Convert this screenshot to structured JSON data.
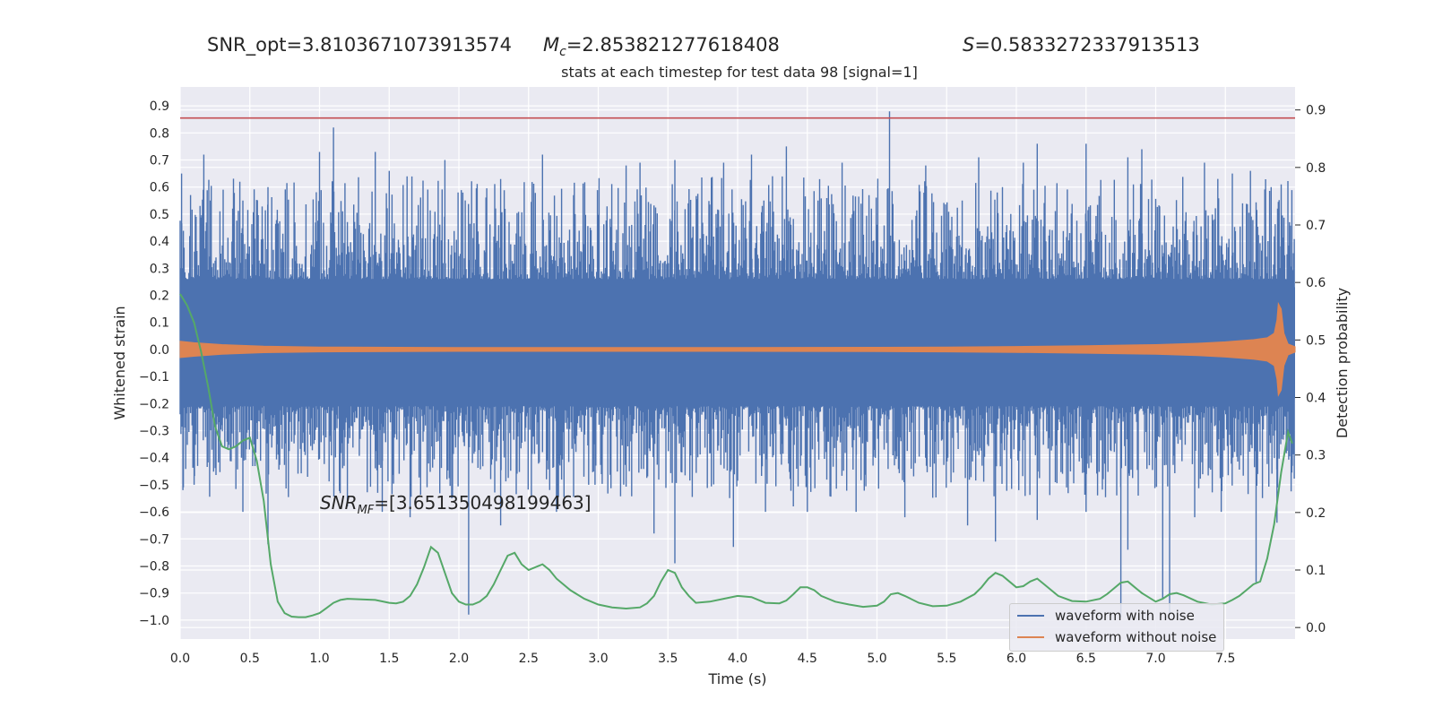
{
  "header": {
    "snr_opt": "SNR_opt=3.8103671073913574",
    "mc_symbol": "M",
    "mc_sub": "c",
    "mc_value": "=2.853821277618408",
    "s_symbol": "S",
    "s_value": "=0.5833272337913513",
    "title": "stats at each timestep for test data 98 [signal=1]"
  },
  "annotation": {
    "snr_mf_symbol": "SNR",
    "snr_mf_sub": "MF",
    "snr_mf_value": "=[3.651350498199463]"
  },
  "legend": {
    "items": [
      {
        "label": "waveform with noise",
        "color": "#4c72b0"
      },
      {
        "label": "waveform without noise",
        "color": "#dd8452"
      }
    ]
  },
  "chart_data": {
    "type": "line",
    "xlabel": "Time (s)",
    "ylabel": "Whitened strain",
    "y2label": "Detection probability",
    "xlim": [
      0.0,
      8.0
    ],
    "ylim": [
      -1.07,
      0.97
    ],
    "y2lim": [
      -0.02,
      0.94
    ],
    "xticks": [
      "0.0",
      "0.5",
      "1.0",
      "1.5",
      "2.0",
      "2.5",
      "3.0",
      "3.5",
      "4.0",
      "4.5",
      "5.0",
      "5.5",
      "6.0",
      "6.5",
      "7.0",
      "7.5"
    ],
    "yticks": [
      "0.9",
      "0.8",
      "0.7",
      "0.6",
      "0.5",
      "0.4",
      "0.3",
      "0.2",
      "0.1",
      "0.0",
      "-0.1",
      "-0.2",
      "-0.3",
      "-0.4",
      "-0.5",
      "-0.6",
      "-0.7",
      "-0.8",
      "-0.9",
      "-1.0"
    ],
    "y2ticks": [
      "0.9",
      "0.8",
      "0.7",
      "0.6",
      "0.5",
      "0.4",
      "0.3",
      "0.2",
      "0.1",
      "0.0"
    ],
    "grid": true,
    "legend_position": "lower-right",
    "series": [
      {
        "name": "waveform with noise",
        "color": "#4c72b0",
        "dense_band": {
          "upper": 0.23,
          "lower": -0.18
        },
        "peaks": [
          [
            0.01,
            0.65
          ],
          [
            0.17,
            0.72
          ],
          [
            0.45,
            0.55
          ],
          [
            0.63,
            0.6
          ],
          [
            1.0,
            0.73
          ],
          [
            1.1,
            0.82
          ],
          [
            1.4,
            0.73
          ],
          [
            1.5,
            0.66
          ],
          [
            1.9,
            0.7
          ],
          [
            2.3,
            0.63
          ],
          [
            2.6,
            0.72
          ],
          [
            3.2,
            0.68
          ],
          [
            3.3,
            0.69
          ],
          [
            3.55,
            0.7
          ],
          [
            3.9,
            0.69
          ],
          [
            4.1,
            0.72
          ],
          [
            4.25,
            0.64
          ],
          [
            4.35,
            0.75
          ],
          [
            4.75,
            0.69
          ],
          [
            5.09,
            0.88
          ],
          [
            5.35,
            0.68
          ],
          [
            5.73,
            0.71
          ],
          [
            5.9,
            0.6
          ],
          [
            6.05,
            0.69
          ],
          [
            6.15,
            0.76
          ],
          [
            6.5,
            0.76
          ],
          [
            6.8,
            0.71
          ],
          [
            6.9,
            0.74
          ],
          [
            7.35,
            0.69
          ],
          [
            7.55,
            0.65
          ],
          [
            7.68,
            0.66
          ],
          [
            7.9,
            0.61
          ]
        ],
        "troughs": [
          [
            0.02,
            -0.52
          ],
          [
            0.1,
            -0.5
          ],
          [
            0.45,
            -0.6
          ],
          [
            0.63,
            -0.72
          ],
          [
            1.2,
            -0.58
          ],
          [
            1.45,
            -0.6
          ],
          [
            1.65,
            -0.62
          ],
          [
            2.07,
            -0.98
          ],
          [
            2.3,
            -0.65
          ],
          [
            2.7,
            -0.6
          ],
          [
            3.4,
            -0.68
          ],
          [
            3.55,
            -0.79
          ],
          [
            3.97,
            -0.73
          ],
          [
            4.2,
            -0.6
          ],
          [
            4.4,
            -0.58
          ],
          [
            4.5,
            -0.6
          ],
          [
            4.85,
            -0.6
          ],
          [
            5.2,
            -0.62
          ],
          [
            5.65,
            -0.65
          ],
          [
            5.85,
            -0.71
          ],
          [
            6.15,
            -0.63
          ],
          [
            6.5,
            -0.6
          ],
          [
            6.75,
            -0.99
          ],
          [
            6.8,
            -0.74
          ],
          [
            7.05,
            -0.92
          ],
          [
            7.1,
            -0.98
          ],
          [
            7.28,
            -0.62
          ],
          [
            7.47,
            -0.6
          ],
          [
            7.72,
            -0.86
          ],
          [
            7.87,
            -0.64
          ],
          [
            7.98,
            -0.43
          ]
        ]
      },
      {
        "name": "waveform without noise",
        "color": "#dd8452",
        "envelope": [
          [
            0.0,
            0.03
          ],
          [
            0.1,
            0.025
          ],
          [
            0.3,
            0.018
          ],
          [
            0.6,
            0.012
          ],
          [
            1.0,
            0.009
          ],
          [
            2.0,
            0.007
          ],
          [
            3.0,
            0.007
          ],
          [
            4.0,
            0.007
          ],
          [
            5.0,
            0.008
          ],
          [
            5.5,
            0.009
          ],
          [
            6.0,
            0.011
          ],
          [
            6.5,
            0.014
          ],
          [
            7.0,
            0.018
          ],
          [
            7.3,
            0.023
          ],
          [
            7.5,
            0.028
          ],
          [
            7.7,
            0.036
          ],
          [
            7.8,
            0.043
          ],
          [
            7.85,
            0.06
          ],
          [
            7.87,
            0.11
          ],
          [
            7.88,
            0.17
          ],
          [
            7.9,
            0.15
          ],
          [
            7.92,
            0.06
          ],
          [
            7.95,
            0.02
          ],
          [
            8.0,
            0.01
          ]
        ]
      },
      {
        "name": "",
        "color": "#55a868",
        "axis": "right",
        "points": [
          [
            0.0,
            0.58
          ],
          [
            0.05,
            0.56
          ],
          [
            0.1,
            0.53
          ],
          [
            0.15,
            0.48
          ],
          [
            0.2,
            0.42
          ],
          [
            0.25,
            0.35
          ],
          [
            0.3,
            0.315
          ],
          [
            0.35,
            0.31
          ],
          [
            0.4,
            0.315
          ],
          [
            0.45,
            0.325
          ],
          [
            0.5,
            0.33
          ],
          [
            0.55,
            0.29
          ],
          [
            0.6,
            0.22
          ],
          [
            0.65,
            0.11
          ],
          [
            0.7,
            0.045
          ],
          [
            0.75,
            0.025
          ],
          [
            0.8,
            0.019
          ],
          [
            0.85,
            0.018
          ],
          [
            0.9,
            0.018
          ],
          [
            0.95,
            0.021
          ],
          [
            1.0,
            0.025
          ],
          [
            1.05,
            0.034
          ],
          [
            1.1,
            0.043
          ],
          [
            1.15,
            0.048
          ],
          [
            1.2,
            0.05
          ],
          [
            1.4,
            0.048
          ],
          [
            1.5,
            0.043
          ],
          [
            1.55,
            0.042
          ],
          [
            1.6,
            0.045
          ],
          [
            1.65,
            0.055
          ],
          [
            1.7,
            0.075
          ],
          [
            1.75,
            0.105
          ],
          [
            1.8,
            0.14
          ],
          [
            1.85,
            0.13
          ],
          [
            1.9,
            0.095
          ],
          [
            1.95,
            0.06
          ],
          [
            2.0,
            0.045
          ],
          [
            2.05,
            0.04
          ],
          [
            2.1,
            0.04
          ],
          [
            2.15,
            0.045
          ],
          [
            2.2,
            0.055
          ],
          [
            2.25,
            0.075
          ],
          [
            2.3,
            0.1
          ],
          [
            2.35,
            0.125
          ],
          [
            2.4,
            0.13
          ],
          [
            2.45,
            0.11
          ],
          [
            2.5,
            0.1
          ],
          [
            2.55,
            0.105
          ],
          [
            2.6,
            0.11
          ],
          [
            2.65,
            0.1
          ],
          [
            2.7,
            0.085
          ],
          [
            2.8,
            0.065
          ],
          [
            2.9,
            0.05
          ],
          [
            3.0,
            0.04
          ],
          [
            3.1,
            0.035
          ],
          [
            3.2,
            0.033
          ],
          [
            3.3,
            0.035
          ],
          [
            3.35,
            0.042
          ],
          [
            3.4,
            0.055
          ],
          [
            3.45,
            0.08
          ],
          [
            3.5,
            0.1
          ],
          [
            3.55,
            0.095
          ],
          [
            3.6,
            0.07
          ],
          [
            3.65,
            0.055
          ],
          [
            3.7,
            0.043
          ],
          [
            3.8,
            0.045
          ],
          [
            3.9,
            0.05
          ],
          [
            4.0,
            0.055
          ],
          [
            4.1,
            0.053
          ],
          [
            4.15,
            0.048
          ],
          [
            4.2,
            0.043
          ],
          [
            4.3,
            0.042
          ],
          [
            4.35,
            0.047
          ],
          [
            4.4,
            0.058
          ],
          [
            4.45,
            0.07
          ],
          [
            4.5,
            0.07
          ],
          [
            4.55,
            0.065
          ],
          [
            4.6,
            0.055
          ],
          [
            4.7,
            0.045
          ],
          [
            4.8,
            0.04
          ],
          [
            4.9,
            0.036
          ],
          [
            5.0,
            0.038
          ],
          [
            5.05,
            0.045
          ],
          [
            5.1,
            0.058
          ],
          [
            5.15,
            0.06
          ],
          [
            5.2,
            0.055
          ],
          [
            5.3,
            0.043
          ],
          [
            5.4,
            0.037
          ],
          [
            5.5,
            0.038
          ],
          [
            5.6,
            0.045
          ],
          [
            5.7,
            0.058
          ],
          [
            5.75,
            0.07
          ],
          [
            5.8,
            0.085
          ],
          [
            5.85,
            0.095
          ],
          [
            5.9,
            0.09
          ],
          [
            5.95,
            0.08
          ],
          [
            6.0,
            0.07
          ],
          [
            6.05,
            0.072
          ],
          [
            6.1,
            0.08
          ],
          [
            6.15,
            0.085
          ],
          [
            6.2,
            0.075
          ],
          [
            6.3,
            0.055
          ],
          [
            6.4,
            0.046
          ],
          [
            6.5,
            0.045
          ],
          [
            6.6,
            0.05
          ],
          [
            6.65,
            0.058
          ],
          [
            6.7,
            0.068
          ],
          [
            6.75,
            0.078
          ],
          [
            6.8,
            0.08
          ],
          [
            6.85,
            0.07
          ],
          [
            6.9,
            0.06
          ],
          [
            7.0,
            0.045
          ],
          [
            7.05,
            0.05
          ],
          [
            7.1,
            0.058
          ],
          [
            7.15,
            0.06
          ],
          [
            7.2,
            0.056
          ],
          [
            7.3,
            0.045
          ],
          [
            7.4,
            0.04
          ],
          [
            7.5,
            0.042
          ],
          [
            7.55,
            0.048
          ],
          [
            7.6,
            0.055
          ],
          [
            7.65,
            0.065
          ],
          [
            7.7,
            0.075
          ],
          [
            7.75,
            0.08
          ],
          [
            7.8,
            0.12
          ],
          [
            7.85,
            0.18
          ],
          [
            7.9,
            0.27
          ],
          [
            7.95,
            0.34
          ],
          [
            7.98,
            0.32
          ]
        ]
      },
      {
        "name": "",
        "color": "#c44e52",
        "type": "hline",
        "y": 0.886
      }
    ]
  }
}
